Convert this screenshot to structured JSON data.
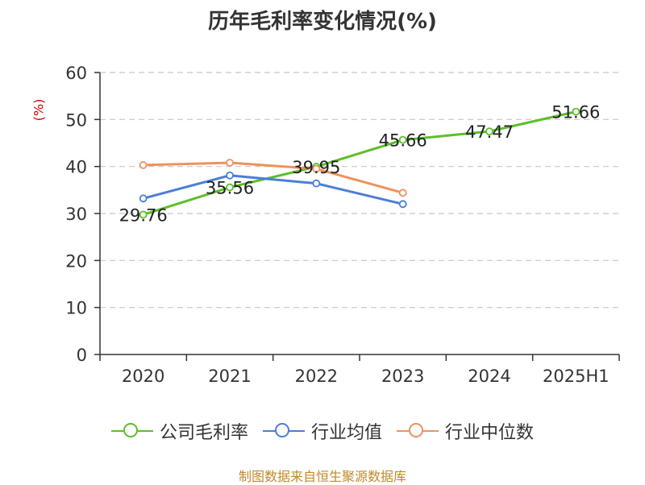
{
  "chart_data": {
    "type": "line",
    "title": "历年毛利率变化情况(%)",
    "unit_label": "(%)",
    "categories": [
      "2020",
      "2021",
      "2022",
      "2023",
      "2024",
      "2025H1"
    ],
    "ylim": [
      0,
      60
    ],
    "yticks": [
      "0",
      "10",
      "20",
      "30",
      "40",
      "50",
      "60"
    ],
    "grid": true,
    "legend_position": "bottom",
    "series": [
      {
        "name": "公司毛利率",
        "color": "#5cbf2a",
        "values": [
          29.76,
          35.56,
          39.95,
          45.66,
          47.47,
          51.66
        ],
        "labels": [
          "29.76",
          "35.56",
          "39.95",
          "45.66",
          "47.47",
          "51.66"
        ]
      },
      {
        "name": "行业均值",
        "color": "#4a7fd6",
        "values": [
          33.2,
          38.1,
          36.4,
          32.0,
          null,
          null
        ]
      },
      {
        "name": "行业中位数",
        "color": "#f0915c",
        "values": [
          40.3,
          40.8,
          39.5,
          34.4,
          null,
          null
        ]
      }
    ]
  },
  "source": "制图数据来自恒生聚源数据库"
}
